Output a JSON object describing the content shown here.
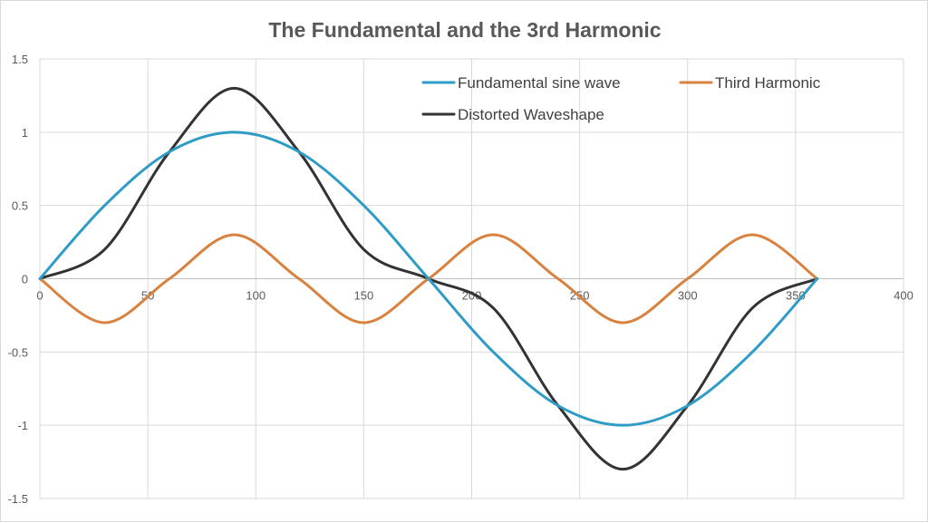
{
  "chart_data": {
    "type": "scatter",
    "title": "The Fundamental and the 3rd Harmonic",
    "xlabel": "",
    "ylabel": "",
    "xlim": [
      0,
      400
    ],
    "ylim": [
      -1.5,
      1.5
    ],
    "x_ticks": [
      "0",
      "50",
      "100",
      "150",
      "200",
      "250",
      "300",
      "350",
      "400"
    ],
    "y_ticks": [
      "1.5",
      "1",
      "0.5",
      "0",
      "-0.5",
      "-1",
      "-1.5"
    ],
    "grid": true,
    "legend_position": "top-right",
    "x": [
      0,
      30,
      60,
      90,
      120,
      150,
      180,
      210,
      240,
      270,
      300,
      330,
      360
    ],
    "series": [
      {
        "name": "Fundamental sine wave",
        "color": "#2e9cc5",
        "values": [
          0,
          0.5,
          0.866,
          1,
          0.866,
          0.5,
          0,
          -0.5,
          -0.866,
          -1,
          -0.866,
          -0.5,
          0
        ]
      },
      {
        "name": "Third Harmonic",
        "color": "#d9823f",
        "values": [
          0,
          -0.3,
          0,
          0.3,
          0,
          -0.3,
          0,
          0.3,
          0,
          -0.3,
          0,
          0.3,
          0
        ]
      },
      {
        "name": "Distorted Waveshape",
        "color": "#333333",
        "values": [
          0,
          0.2,
          0.866,
          1.3,
          0.866,
          0.2,
          0,
          -0.2,
          -0.866,
          -1.3,
          -0.866,
          -0.2,
          0
        ]
      }
    ]
  }
}
